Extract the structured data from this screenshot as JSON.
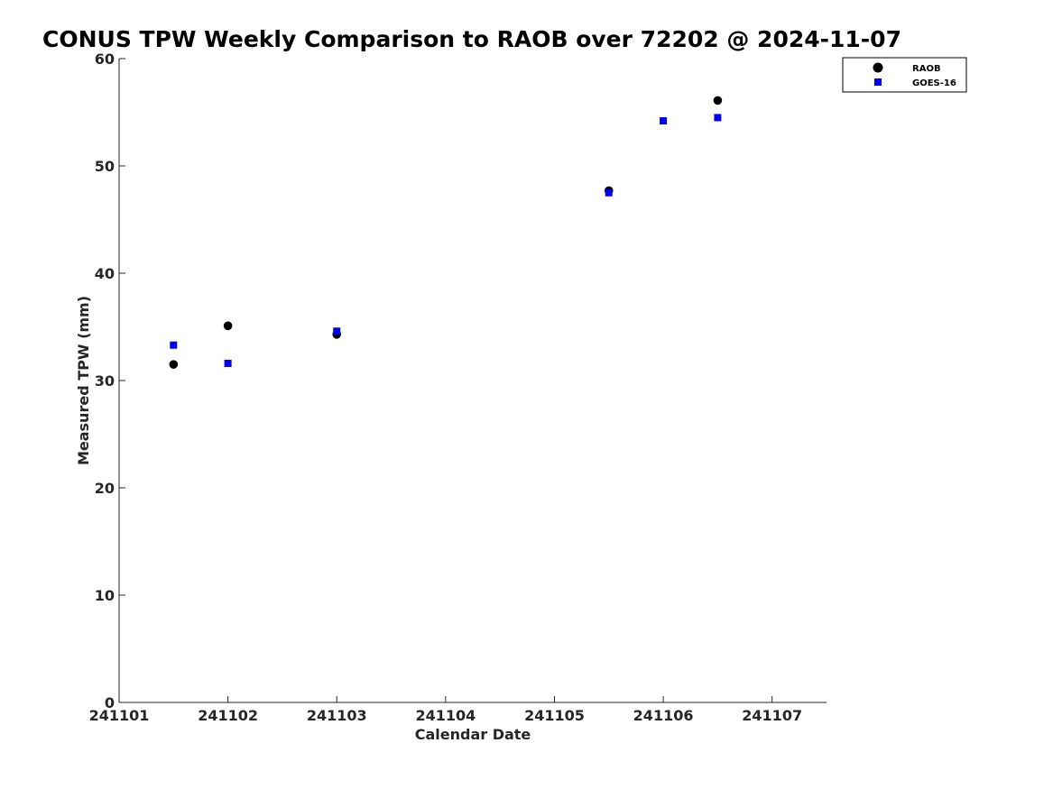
{
  "chart_data": {
    "type": "scatter",
    "title": "CONUS TPW Weekly Comparison to RAOB over 72202 @ 2024-11-07",
    "xlabel": "Calendar Date",
    "ylabel": "Measured TPW (mm)",
    "xlim": [
      "2024-11-01T00:00",
      "2024-11-07T12:00"
    ],
    "ylim": [
      0,
      60
    ],
    "x_ticks": [
      {
        "value": "2024-11-01T00:00",
        "label": "241101"
      },
      {
        "value": "2024-11-02T00:00",
        "label": "241102"
      },
      {
        "value": "2024-11-03T00:00",
        "label": "241103"
      },
      {
        "value": "2024-11-04T00:00",
        "label": "241104"
      },
      {
        "value": "2024-11-05T00:00",
        "label": "241105"
      },
      {
        "value": "2024-11-06T00:00",
        "label": "241106"
      },
      {
        "value": "2024-11-07T00:00",
        "label": "241107"
      }
    ],
    "y_ticks": [
      0,
      10,
      20,
      30,
      40,
      50,
      60
    ],
    "grid": false,
    "legend_position": "top-right outside",
    "series": [
      {
        "name": "RAOB",
        "marker": "circle",
        "color": "#000000",
        "points": [
          {
            "x": "2024-11-01T12:00",
            "y": 31.5
          },
          {
            "x": "2024-11-02T00:00",
            "y": 35.1
          },
          {
            "x": "2024-11-03T00:00",
            "y": 34.3
          },
          {
            "x": "2024-11-05T12:00",
            "y": 47.7
          },
          {
            "x": "2024-11-06T12:00",
            "y": 56.1
          }
        ]
      },
      {
        "name": "GOES-16",
        "marker": "square",
        "color": "#0000ee",
        "points": [
          {
            "x": "2024-11-01T12:00",
            "y": 33.3
          },
          {
            "x": "2024-11-02T00:00",
            "y": 31.6
          },
          {
            "x": "2024-11-03T00:00",
            "y": 34.6
          },
          {
            "x": "2024-11-05T12:00",
            "y": 47.5
          },
          {
            "x": "2024-11-06T00:00",
            "y": 54.2
          },
          {
            "x": "2024-11-06T12:00",
            "y": 54.5
          }
        ]
      }
    ]
  }
}
